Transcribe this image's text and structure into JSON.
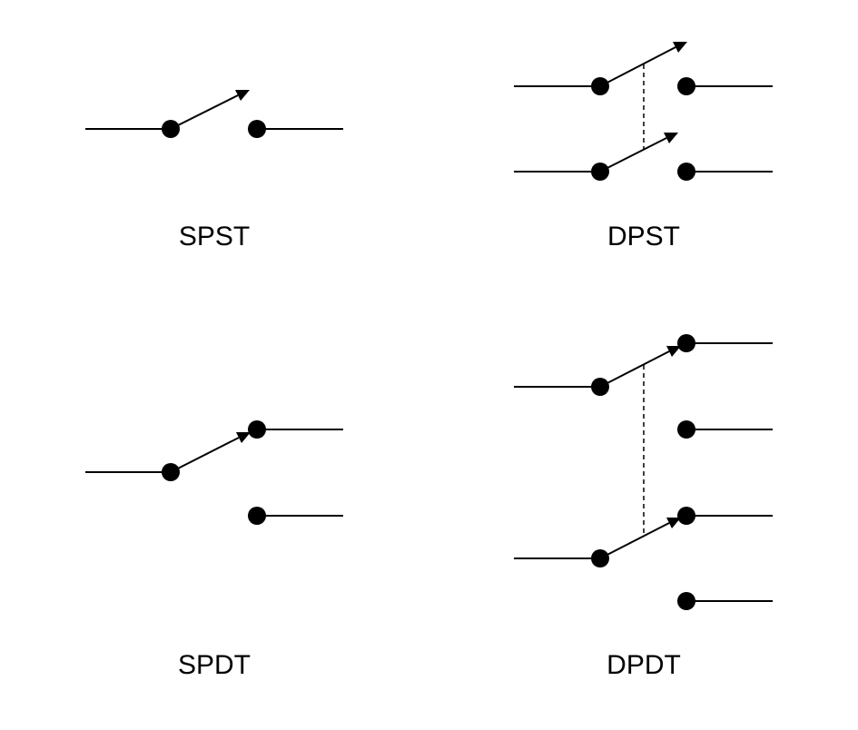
{
  "diagrams": [
    {
      "id": "spst",
      "label": "SPST"
    },
    {
      "id": "dpst",
      "label": "DPST"
    },
    {
      "id": "spdt",
      "label": "SPDT"
    },
    {
      "id": "dpdt",
      "label": "DPDT"
    }
  ],
  "colors": {
    "stroke": "#000000",
    "background": "#ffffff"
  }
}
